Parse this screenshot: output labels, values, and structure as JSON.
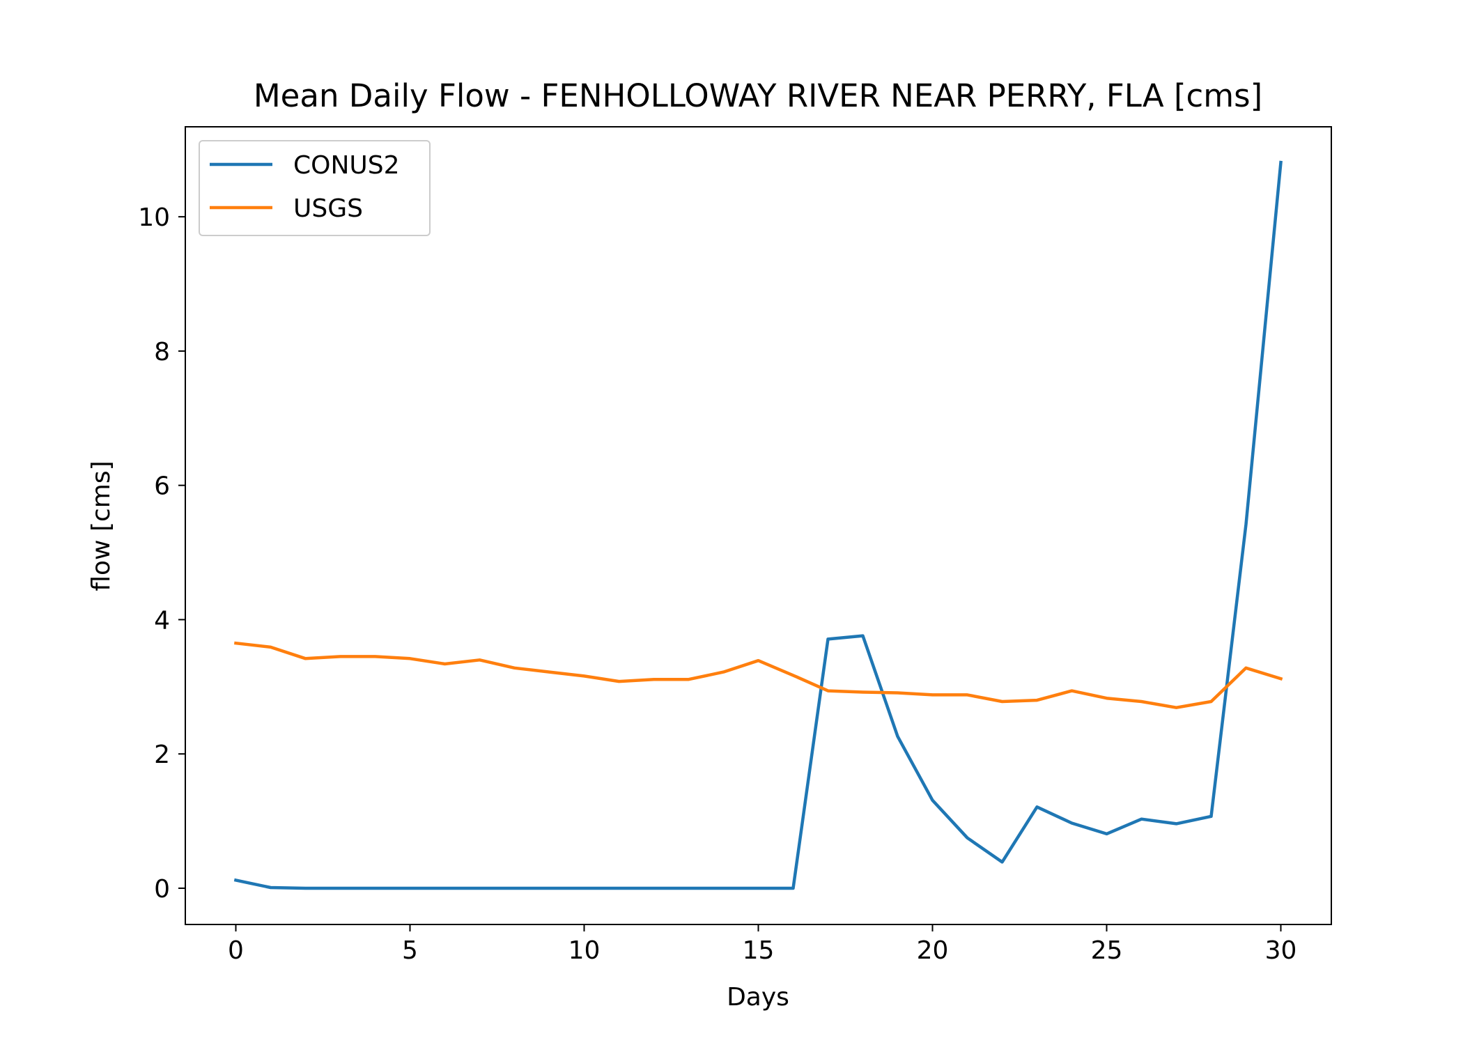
{
  "chart_data": {
    "type": "line",
    "title": "Mean Daily Flow - FENHOLLOWAY RIVER NEAR PERRY, FLA [cms]",
    "xlabel": "Days",
    "ylabel": "flow [cms]",
    "xlim": [
      -1.45,
      31.45
    ],
    "ylim": [
      -0.54,
      11.34
    ],
    "xticks": [
      0,
      5,
      10,
      15,
      20,
      25,
      30
    ],
    "yticks": [
      0,
      2,
      4,
      6,
      8,
      10
    ],
    "legend_position": "upper left",
    "grid": false,
    "x": [
      0,
      1,
      2,
      3,
      4,
      5,
      6,
      7,
      8,
      9,
      10,
      11,
      12,
      13,
      14,
      15,
      16,
      17,
      18,
      19,
      20,
      21,
      22,
      23,
      24,
      25,
      26,
      27,
      28,
      29,
      30
    ],
    "series": [
      {
        "name": "CONUS2",
        "color": "#1f77b4",
        "values": [
          0.12,
          0.01,
          0.0,
          0.0,
          0.0,
          0.0,
          0.0,
          0.0,
          0.0,
          0.0,
          0.0,
          0.0,
          0.0,
          0.0,
          0.0,
          0.0,
          0.0,
          3.71,
          3.76,
          2.26,
          1.31,
          0.75,
          0.39,
          1.21,
          0.97,
          0.81,
          1.03,
          0.96,
          1.07,
          5.42,
          10.81
        ]
      },
      {
        "name": "USGS",
        "color": "#ff7f0e",
        "values": [
          3.65,
          3.59,
          3.42,
          3.45,
          3.45,
          3.42,
          3.34,
          3.4,
          3.28,
          3.22,
          3.16,
          3.08,
          3.11,
          3.11,
          3.22,
          3.39,
          3.17,
          2.94,
          2.92,
          2.91,
          2.88,
          2.88,
          2.78,
          2.8,
          2.94,
          2.83,
          2.78,
          2.69,
          2.78,
          3.28,
          3.12
        ]
      }
    ]
  }
}
